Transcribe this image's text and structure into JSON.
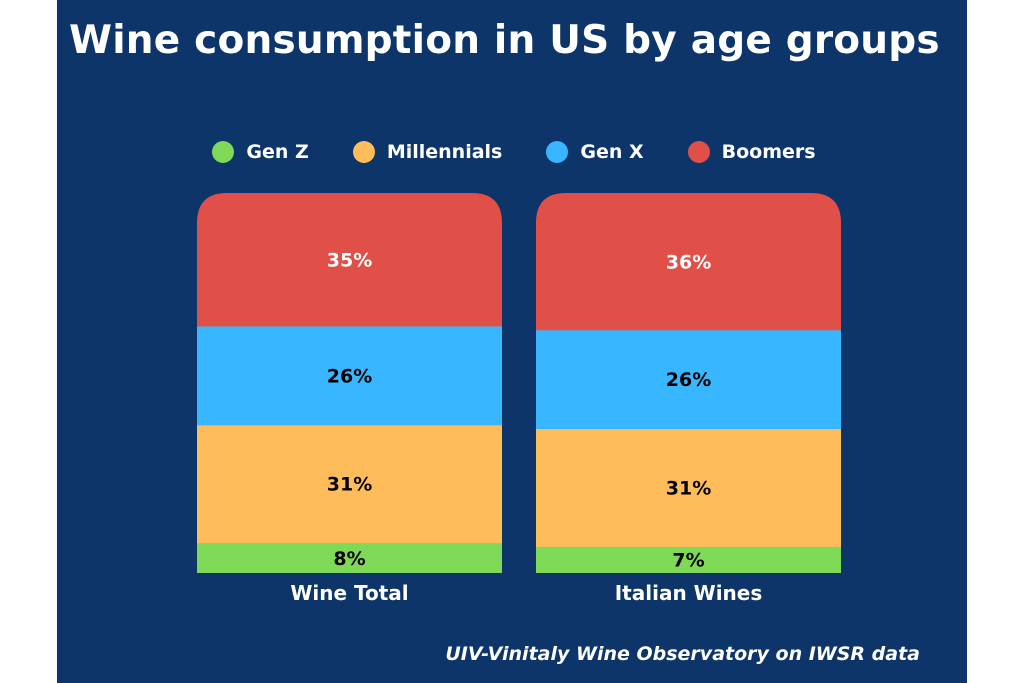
{
  "chart_data": {
    "type": "bar",
    "stacked": true,
    "title": "Wine consumption in US by age groups",
    "categories": [
      "Wine Total",
      "Italian Wines"
    ],
    "series": [
      {
        "name": "Gen Z",
        "color": "#7ed957",
        "values": [
          8,
          7
        ]
      },
      {
        "name": "Millennials",
        "color": "#ffbc5b",
        "values": [
          31,
          31
        ]
      },
      {
        "name": "Gen X",
        "color": "#38b6ff",
        "values": [
          26,
          26
        ]
      },
      {
        "name": "Boomers",
        "color": "#e05048",
        "values": [
          35,
          36
        ]
      }
    ],
    "data_labels": [
      [
        "8%",
        "7%"
      ],
      [
        "31%",
        "31%"
      ],
      [
        "26%",
        "26%"
      ],
      [
        "35%",
        "36%"
      ]
    ],
    "ylim": [
      0,
      100
    ],
    "legend_position": "top",
    "grid": false,
    "source": "UIV-Vinitaly Wine Observatory on IWSR data"
  },
  "colors": {
    "background": "#0d3569",
    "text": "#ffffff"
  }
}
